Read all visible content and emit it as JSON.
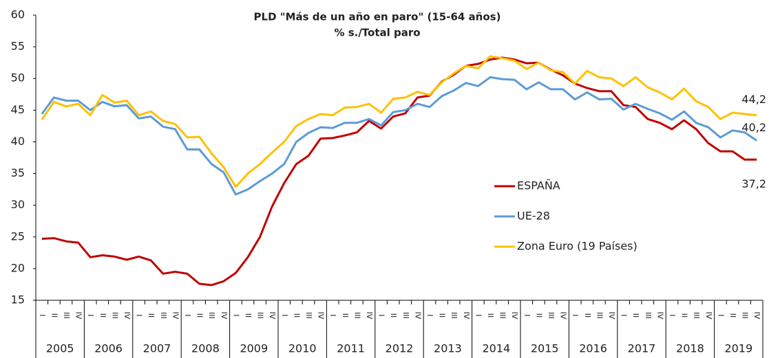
{
  "chart_data": {
    "type": "line",
    "title": "PLD \"Más de un año en paro\" (15-64 años)",
    "subtitle": "% s./Total paro",
    "categories": [
      "I",
      "II",
      "III",
      "IV",
      "I",
      "II",
      "III",
      "IV",
      "I",
      "II",
      "III",
      "IV",
      "I",
      "II",
      "III",
      "IV",
      "I",
      "II",
      "III",
      "IV",
      "I",
      "II",
      "III",
      "IV",
      "I",
      "II",
      "III",
      "IV",
      "I",
      "II",
      "III",
      "IV",
      "I",
      "II",
      "III",
      "IV",
      "I",
      "II",
      "III",
      "IV",
      "I",
      "II",
      "III",
      "IV",
      "I",
      "II",
      "III",
      "IV",
      "I",
      "II",
      "III",
      "IV",
      "I",
      "II",
      "III",
      "IV",
      "I",
      "II",
      "III",
      "IV"
    ],
    "years": [
      "2005",
      "2006",
      "2007",
      "2008",
      "2009",
      "2010",
      "2011",
      "2012",
      "2013",
      "2014",
      "2015",
      "2016",
      "2017",
      "2018",
      "2019"
    ],
    "ylim": [
      15,
      60
    ],
    "yticks": [
      15,
      20,
      25,
      30,
      35,
      40,
      45,
      50,
      55,
      60
    ],
    "series": [
      {
        "name": "ESPAÑA",
        "color": "#c00000",
        "values": [
          24.7,
          24.8,
          24.3,
          24.1,
          21.8,
          22.1,
          21.9,
          21.4,
          21.9,
          21.3,
          19.2,
          19.5,
          19.2,
          17.6,
          17.4,
          18.0,
          19.3,
          21.8,
          25.0,
          29.8,
          33.5,
          36.5,
          37.8,
          40.5,
          40.6,
          41.0,
          41.5,
          43.3,
          42.1,
          44.0,
          44.5,
          47.0,
          47.3,
          49.5,
          50.6,
          52.0,
          52.3,
          53.0,
          53.3,
          53.0,
          52.4,
          52.5,
          51.4,
          50.5,
          49.2,
          48.5,
          48.0,
          48.0,
          45.8,
          45.5,
          43.6,
          43.0,
          42.0,
          43.4,
          42.0,
          39.8,
          38.5,
          38.5,
          37.2,
          37.2
        ],
        "value_labels": [
          null,
          null,
          null,
          null,
          null,
          null,
          null,
          null,
          null,
          null,
          null,
          null,
          null,
          null,
          null,
          null,
          null,
          null,
          null,
          null,
          null,
          null,
          null,
          null,
          null,
          null,
          null,
          null,
          null,
          null,
          null,
          null,
          null,
          null,
          null,
          null,
          null,
          null,
          null,
          null,
          null,
          null,
          null,
          null,
          null,
          null,
          null,
          null,
          null,
          null,
          null,
          null,
          null,
          null,
          null,
          null,
          null,
          null,
          null,
          "37,2"
        ]
      },
      {
        "name": "UE-28",
        "color": "#5b9bd5",
        "values": [
          44.4,
          47.0,
          46.5,
          46.5,
          45.0,
          46.3,
          45.6,
          45.8,
          43.7,
          44.0,
          42.4,
          42.0,
          38.8,
          38.8,
          36.5,
          35.2,
          31.7,
          32.5,
          33.8,
          35.0,
          36.5,
          40.0,
          41.4,
          42.3,
          42.2,
          43.0,
          43.0,
          43.6,
          42.6,
          44.7,
          45.0,
          46.0,
          45.5,
          47.2,
          48.1,
          49.3,
          48.8,
          50.2,
          49.9,
          49.8,
          48.3,
          49.4,
          48.3,
          48.3,
          46.7,
          47.8,
          46.7,
          46.8,
          45.1,
          46.0,
          45.2,
          44.5,
          43.5,
          44.8,
          43.0,
          42.3,
          40.7,
          41.8,
          41.5,
          40.2
        ],
        "value_labels": [
          null,
          null,
          null,
          null,
          null,
          null,
          null,
          null,
          null,
          null,
          null,
          null,
          null,
          null,
          null,
          null,
          null,
          null,
          null,
          null,
          null,
          null,
          null,
          null,
          null,
          null,
          null,
          null,
          null,
          null,
          null,
          null,
          null,
          null,
          null,
          null,
          null,
          null,
          null,
          null,
          null,
          null,
          null,
          null,
          null,
          null,
          null,
          null,
          null,
          null,
          null,
          null,
          null,
          null,
          null,
          null,
          null,
          null,
          null,
          "40,2"
        ]
      },
      {
        "name": "Zona Euro (19 Países)",
        "color": "#ffc000",
        "values": [
          43.5,
          46.3,
          45.6,
          46.0,
          44.2,
          47.4,
          46.2,
          46.5,
          44.2,
          44.8,
          43.3,
          42.8,
          40.7,
          40.8,
          38.2,
          36.0,
          32.9,
          35.0,
          36.5,
          38.3,
          40.0,
          42.5,
          43.6,
          44.4,
          44.2,
          45.4,
          45.5,
          46.0,
          44.6,
          46.8,
          47.0,
          47.9,
          47.4,
          49.4,
          50.8,
          52.0,
          51.6,
          53.5,
          53.2,
          52.8,
          51.5,
          52.5,
          51.3,
          51.0,
          49.2,
          51.2,
          50.2,
          50.0,
          48.8,
          50.2,
          48.6,
          47.8,
          46.7,
          48.4,
          46.4,
          45.5,
          43.6,
          44.6,
          44.4,
          44.2
        ],
        "value_labels": [
          null,
          null,
          null,
          null,
          null,
          null,
          null,
          null,
          null,
          null,
          null,
          null,
          null,
          null,
          null,
          null,
          null,
          null,
          null,
          null,
          null,
          null,
          null,
          null,
          null,
          null,
          null,
          null,
          null,
          null,
          null,
          null,
          null,
          null,
          null,
          null,
          null,
          null,
          null,
          null,
          null,
          null,
          null,
          null,
          null,
          null,
          null,
          null,
          null,
          null,
          null,
          null,
          null,
          null,
          null,
          null,
          null,
          null,
          null,
          "44,2"
        ]
      }
    ],
    "grid": false,
    "legend": "right"
  }
}
